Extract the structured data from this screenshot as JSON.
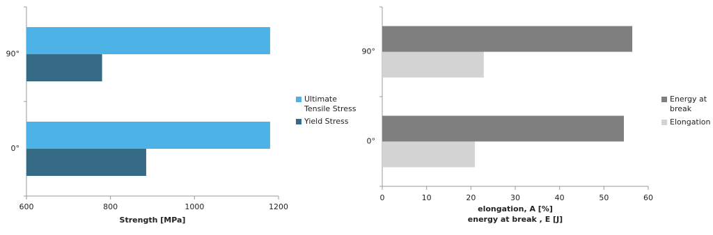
{
  "chart_data": [
    {
      "type": "hbar",
      "categories": [
        "90°",
        "0°"
      ],
      "series": [
        {
          "name": "Ultimate Tensile Stress",
          "color": "#4db3e6",
          "values": [
            1180,
            1180
          ]
        },
        {
          "name": "Yield Stress",
          "color": "#356b84",
          "values": [
            780,
            885
          ]
        }
      ],
      "xlabel": [
        "Strength [MPa]"
      ],
      "xlim": [
        600,
        1200
      ],
      "xticks": [
        600,
        800,
        1000,
        1200
      ]
    },
    {
      "type": "hbar",
      "categories": [
        "90°",
        "0°"
      ],
      "series": [
        {
          "name": "Energy at break",
          "color": "#7f7f7f",
          "values": [
            56.4,
            54.5
          ]
        },
        {
          "name": "Elongation",
          "color": "#d3d3d3",
          "values": [
            22.9,
            20.9
          ]
        }
      ],
      "xlabel": [
        "elongation, A [%]",
        "energy at break , E [J]"
      ],
      "xlim": [
        0,
        60
      ],
      "xticks": [
        0,
        10,
        20,
        30,
        40,
        50,
        60
      ]
    }
  ]
}
